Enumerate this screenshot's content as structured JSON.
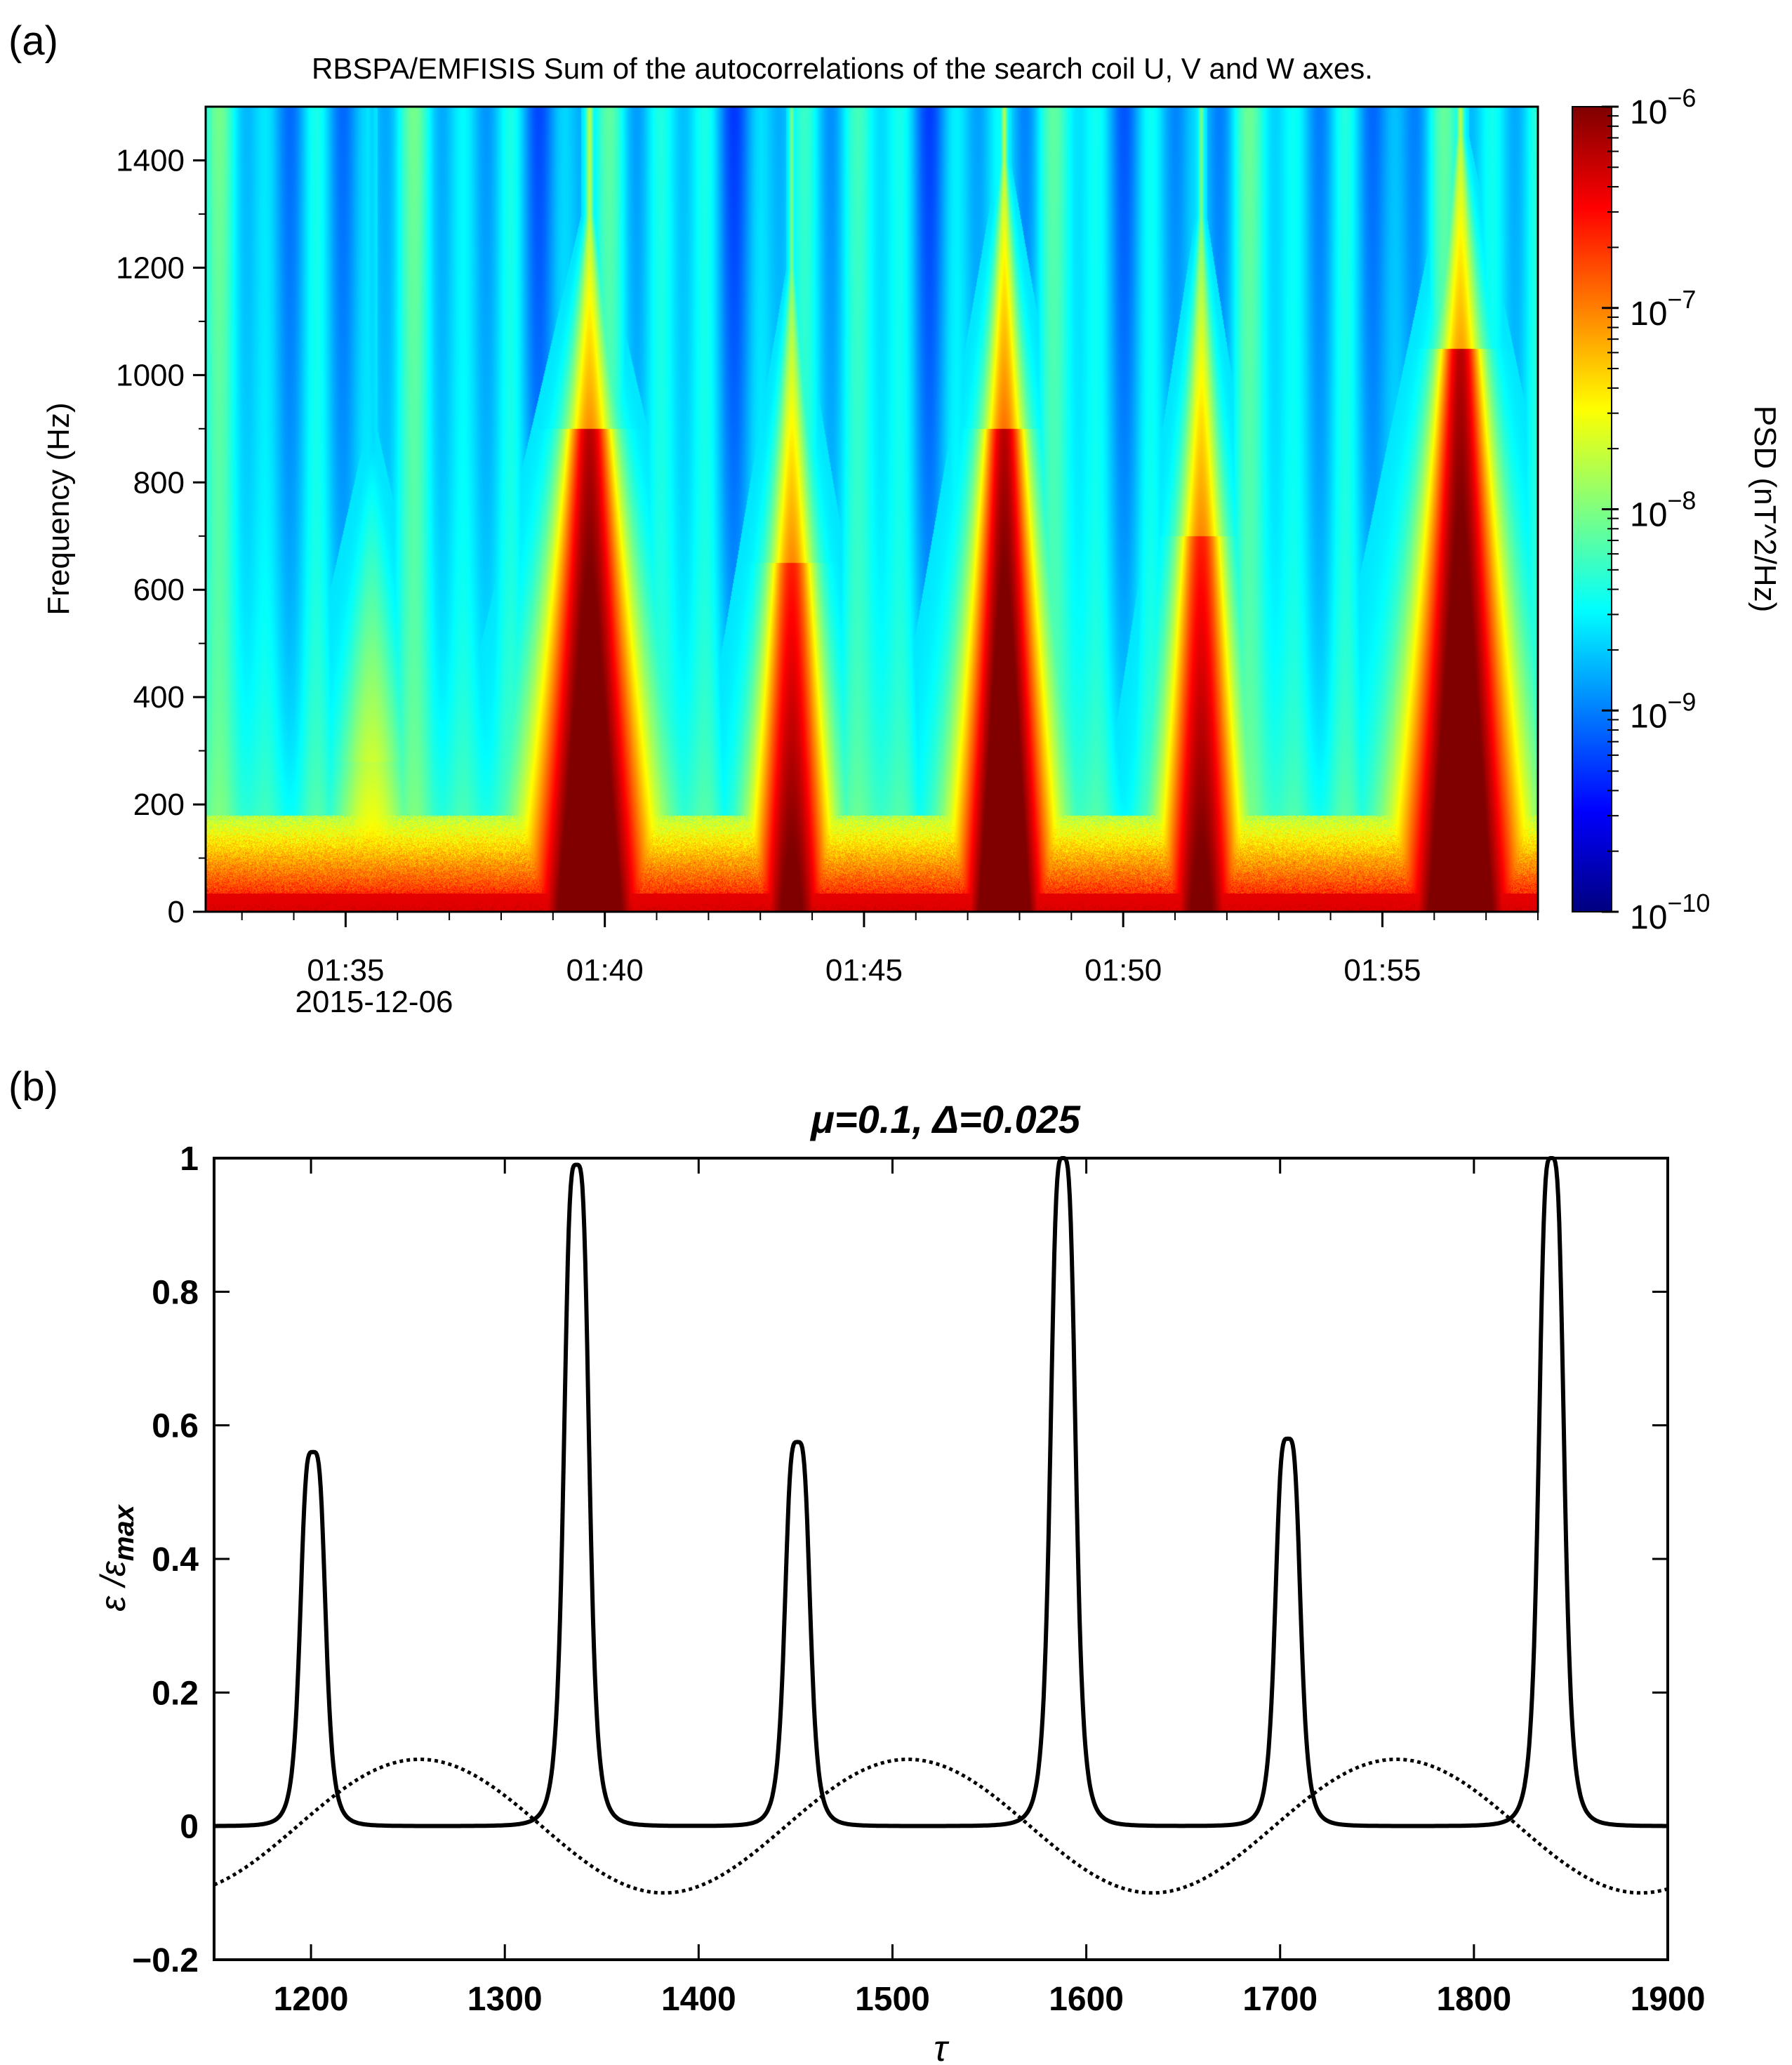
{
  "chart_data": [
    {
      "panel": "(a)",
      "type": "heatmap",
      "title": "RBSPA/EMFISIS  Sum of the autocorrelations of the search coil U, V and W axes.",
      "ylabel": "Frequency (Hz)",
      "ylim": [
        0,
        1500
      ],
      "yticks": [
        "0",
        "200",
        "400",
        "600",
        "800",
        "1000",
        "1200",
        "1400"
      ],
      "ytick_values": [
        0,
        200,
        400,
        600,
        800,
        1000,
        1200,
        1400
      ],
      "xlim_minutes": [
        32.3,
        58.0
      ],
      "xticks": [
        "01:35",
        "01:40",
        "01:45",
        "01:50",
        "01:55"
      ],
      "xtick_minutes": [
        35,
        40,
        45,
        50,
        55
      ],
      "date_label": "2015-12-06",
      "colorbar": {
        "label": "PSD (nT^2/Hz)",
        "scale": "log",
        "range_exponent": [
          -10,
          -6
        ],
        "tick_base": "10",
        "tick_exponents": [
          "−10",
          "−9",
          "−8",
          "−7",
          "−6"
        ],
        "tick_exponent_values": [
          -10,
          -9,
          -8,
          -7,
          -6
        ],
        "colormap": "jet"
      },
      "background_band": {
        "upper_hz": 180,
        "level": 0.6
      },
      "bursts": [
        {
          "time_min": 35.5,
          "base_half_width_min": 1.0,
          "red_top_hz": 280,
          "green_top_hz": 900,
          "level": 0.6,
          "dark": false
        },
        {
          "time_min": 39.7,
          "base_half_width_min": 1.5,
          "red_top_hz": 900,
          "green_top_hz": 1300,
          "level": 1.0,
          "dark": true
        },
        {
          "time_min": 43.6,
          "base_half_width_min": 1.0,
          "red_top_hz": 650,
          "green_top_hz": 1200,
          "level": 0.9,
          "dark": true
        },
        {
          "time_min": 47.7,
          "base_half_width_min": 1.2,
          "red_top_hz": 900,
          "green_top_hz": 1400,
          "level": 1.0,
          "dark": true
        },
        {
          "time_min": 51.5,
          "base_half_width_min": 1.0,
          "red_top_hz": 700,
          "green_top_hz": 1300,
          "level": 0.9,
          "dark": true
        },
        {
          "time_min": 56.5,
          "base_half_width_min": 1.5,
          "red_top_hz": 1050,
          "green_top_hz": 1450,
          "level": 1.0,
          "dark": true
        }
      ]
    },
    {
      "panel": "(b)",
      "type": "line",
      "title": "μ=0.1, Δ=0.025",
      "xlabel": "τ",
      "ylabel": "ε /εmax",
      "ylabel_main": "ε /ε",
      "ylabel_sub": "max",
      "xlim": [
        1150,
        1900
      ],
      "ylim": [
        -0.2,
        1
      ],
      "xticks": [
        1200,
        1300,
        1400,
        1500,
        1600,
        1700,
        1800,
        1900
      ],
      "xtick_labels": [
        "1200",
        "1300",
        "1400",
        "1500",
        "1600",
        "1700",
        "1800",
        "1900"
      ],
      "yticks": [
        -0.2,
        0,
        0.2,
        0.4,
        0.6,
        0.8,
        1
      ],
      "ytick_labels": [
        "−0.2",
        "0",
        "0.2",
        "0.4",
        "0.6",
        "0.8",
        "1"
      ],
      "series": [
        {
          "name": "epsilon",
          "style": "solid",
          "peaks": [
            {
              "x": 1201,
              "y": 0.56
            },
            {
              "x": 1337,
              "y": 0.99
            },
            {
              "x": 1451,
              "y": 0.575
            },
            {
              "x": 1588,
              "y": 1.0
            },
            {
              "x": 1704,
              "y": 0.58
            },
            {
              "x": 1840,
              "y": 1.0
            }
          ],
          "peak_half_width": 7
        },
        {
          "name": "modulation",
          "style": "dotted",
          "form": "sinusoid",
          "amplitude": 0.1,
          "period": 252,
          "max_at": 1256
        }
      ]
    }
  ]
}
